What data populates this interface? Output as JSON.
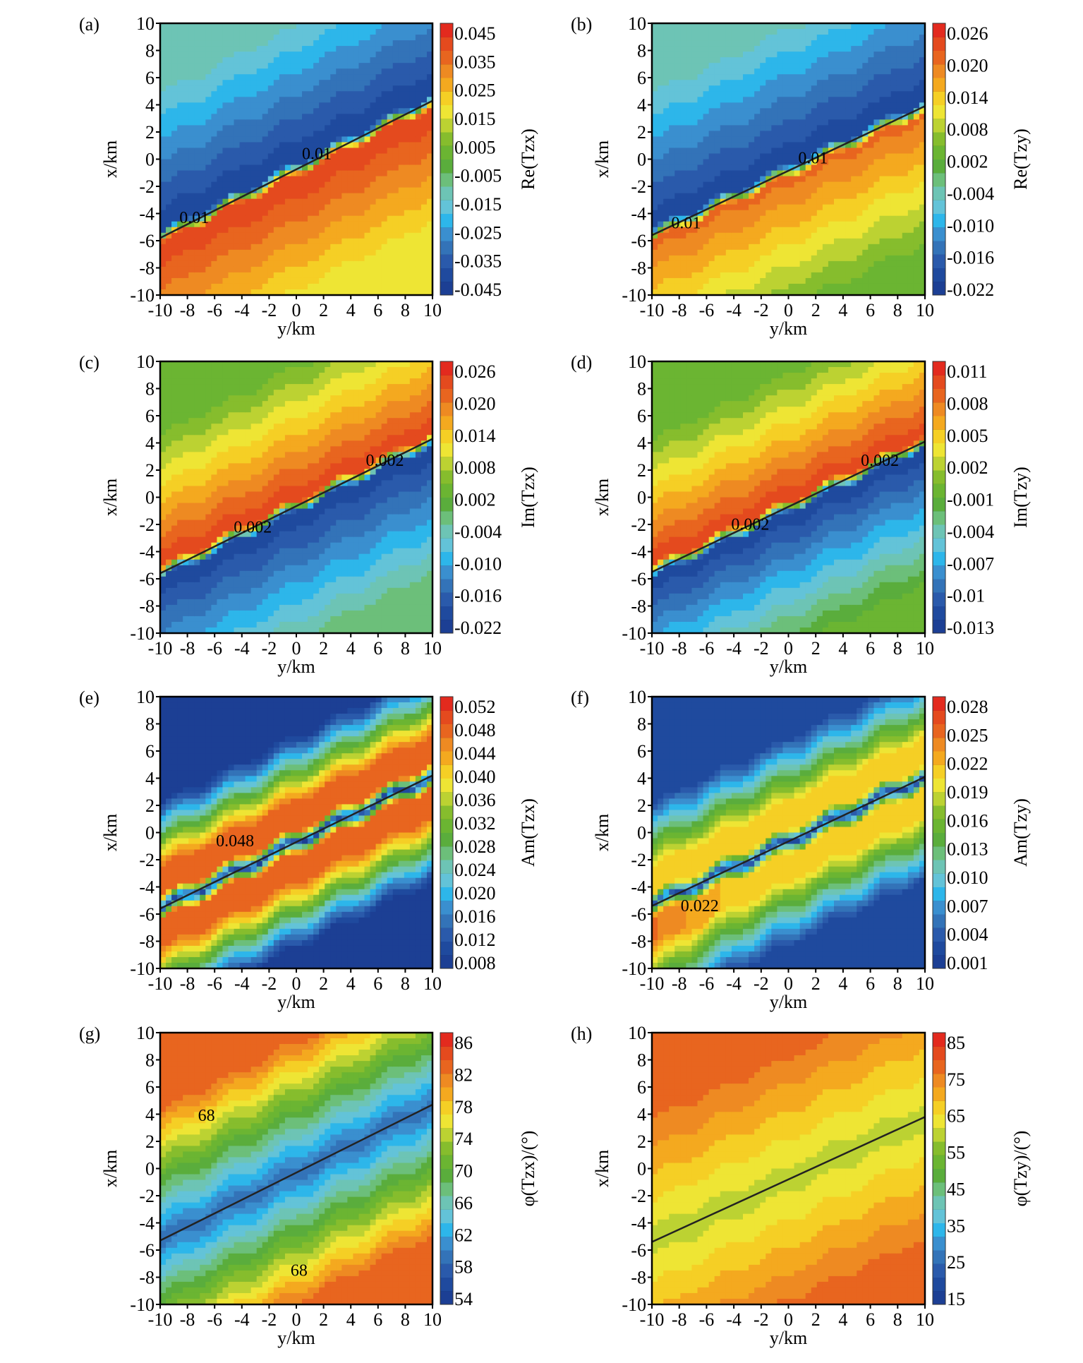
{
  "chart_data": [
    {
      "panel": "(a)",
      "type": "heatmap",
      "xlabel": "y/km",
      "ylabel": "x/km",
      "xlim": [
        -10,
        10
      ],
      "ylim": [
        -10,
        10
      ],
      "xticks": [
        "-10",
        "-8",
        "-6",
        "-4",
        "-2",
        "0",
        "2",
        "4",
        "6",
        "8",
        "10"
      ],
      "yticks": [
        "10",
        "8",
        "6",
        "4",
        "2",
        "0",
        "-2",
        "-4",
        "-6",
        "-8",
        "-10"
      ],
      "colorbar_label": "Re(Tzx)",
      "colorbar_ticks": [
        "0.045",
        "0.035",
        "0.025",
        "0.015",
        "0.005",
        "-0.005",
        "-0.015",
        "-0.025",
        "-0.035",
        "-0.045"
      ],
      "colorbar_range": [
        -0.05,
        0.05
      ],
      "contour_line": {
        "start": [
          -10,
          -5.8
        ],
        "end": [
          10,
          4.3
        ]
      },
      "contour_labels": [
        {
          "text": "0.01",
          "at": [
            1.5,
            0
          ]
        },
        {
          "text": "0.01",
          "at": [
            -7.5,
            -4.7
          ]
        }
      ],
      "field": {
        "above_line": -0.045,
        "below_line": 0.045,
        "far_above": -0.015,
        "far_below": 0.015
      }
    },
    {
      "panel": "(b)",
      "type": "heatmap",
      "xlabel": "y/km",
      "ylabel": "x/km",
      "xlim": [
        -10,
        10
      ],
      "ylim": [
        -10,
        10
      ],
      "xticks": [
        "-10",
        "-8",
        "-6",
        "-4",
        "-2",
        "0",
        "2",
        "4",
        "6",
        "8",
        "10"
      ],
      "yticks": [
        "10",
        "8",
        "6",
        "4",
        "2",
        "0",
        "-2",
        "-4",
        "-6",
        "-8",
        "-10"
      ],
      "colorbar_label": "Re(Tzy)",
      "colorbar_ticks": [
        "0.026",
        "0.020",
        "0.014",
        "0.008",
        "0.002",
        "-0.004",
        "-0.010",
        "-0.016",
        "-0.022"
      ],
      "colorbar_range": [
        -0.025,
        0.029
      ],
      "contour_line": {
        "start": [
          -10,
          -5.6
        ],
        "end": [
          10,
          3.9
        ]
      },
      "contour_labels": [
        {
          "text": "0.01",
          "at": [
            1.8,
            -0.3
          ]
        },
        {
          "text": "0.01",
          "at": [
            -7.5,
            -5.1
          ]
        }
      ],
      "field": {
        "above_line": -0.022,
        "below_line": 0.022,
        "far_above": -0.006,
        "far_below": 0.004
      }
    },
    {
      "panel": "(c)",
      "type": "heatmap",
      "xlabel": "y/km",
      "ylabel": "x/km",
      "xlim": [
        -10,
        10
      ],
      "ylim": [
        -10,
        10
      ],
      "xticks": [
        "-10",
        "-8",
        "-6",
        "-4",
        "-2",
        "0",
        "2",
        "4",
        "6",
        "8",
        "10"
      ],
      "yticks": [
        "10",
        "8",
        "6",
        "4",
        "2",
        "0",
        "-2",
        "-4",
        "-6",
        "-8",
        "-10"
      ],
      "colorbar_label": "Im(Tzx)",
      "colorbar_ticks": [
        "0.026",
        "0.020",
        "0.014",
        "0.008",
        "0.002",
        "-0.004",
        "-0.010",
        "-0.016",
        "-0.022"
      ],
      "colorbar_range": [
        -0.025,
        0.029
      ],
      "contour_line": {
        "start": [
          -10,
          -5.6
        ],
        "end": [
          10,
          4.3
        ]
      },
      "contour_labels": [
        {
          "text": "0.002",
          "at": [
            6.5,
            2.3
          ]
        },
        {
          "text": "0.002",
          "at": [
            -3.2,
            -2.6
          ]
        }
      ],
      "field": {
        "above_line": 0.026,
        "below_line": -0.022,
        "far_above": 0.004,
        "far_below": -0.002
      }
    },
    {
      "panel": "(d)",
      "type": "heatmap",
      "xlabel": "y/km",
      "ylabel": "x/km",
      "xlim": [
        -10,
        10
      ],
      "ylim": [
        -10,
        10
      ],
      "xticks": [
        "-10",
        "-8",
        "-6",
        "-4",
        "-2",
        "0",
        "2",
        "4",
        "6",
        "8",
        "10"
      ],
      "yticks": [
        "10",
        "8",
        "6",
        "4",
        "2",
        "0",
        "-2",
        "-4",
        "-6",
        "-8",
        "-10"
      ],
      "colorbar_label": "Im(Tzy)",
      "colorbar_ticks": [
        "0.011",
        "0.008",
        "0.005",
        "0.002",
        "-0.001",
        "-0.004",
        "-0.007",
        "-0.01",
        "-0.013"
      ],
      "colorbar_range": [
        -0.0145,
        0.0125
      ],
      "contour_line": {
        "start": [
          -10,
          -5.5
        ],
        "end": [
          10,
          4.1
        ]
      },
      "contour_labels": [
        {
          "text": "0.002",
          "at": [
            6.7,
            2.3
          ]
        },
        {
          "text": "0.002",
          "at": [
            -2.8,
            -2.4
          ]
        }
      ],
      "field": {
        "above_line": 0.011,
        "below_line": -0.013,
        "far_above": -0.0005,
        "far_below": -0.001
      }
    },
    {
      "panel": "(e)",
      "type": "heatmap",
      "xlabel": "y/km",
      "ylabel": "x/km",
      "xlim": [
        -10,
        10
      ],
      "ylim": [
        -10,
        10
      ],
      "xticks": [
        "-10",
        "-8",
        "-6",
        "-4",
        "-2",
        "0",
        "2",
        "4",
        "6",
        "8",
        "10"
      ],
      "yticks": [
        "10",
        "8",
        "6",
        "4",
        "2",
        "0",
        "-2",
        "-4",
        "-6",
        "-8",
        "-10"
      ],
      "colorbar_label": "Am(Tzx)",
      "colorbar_ticks": [
        "0.052",
        "0.048",
        "0.044",
        "0.040",
        "0.036",
        "0.032",
        "0.028",
        "0.024",
        "0.020",
        "0.016",
        "0.012",
        "0.008"
      ],
      "colorbar_range": [
        0.006,
        0.054
      ],
      "contour_line": {
        "start": [
          -10,
          -5.6
        ],
        "end": [
          10,
          4.2
        ]
      },
      "contour_labels": [
        {
          "text": "0.048",
          "at": [
            -4.5,
            -1.0
          ]
        }
      ],
      "field": {
        "on_line": 0.008,
        "peak": 0.049,
        "far": 0.008
      }
    },
    {
      "panel": "(f)",
      "type": "heatmap",
      "xlabel": "y/km",
      "ylabel": "x/km",
      "xlim": [
        -10,
        10
      ],
      "ylim": [
        -10,
        10
      ],
      "xticks": [
        "-10",
        "-8",
        "-6",
        "-4",
        "-2",
        "0",
        "2",
        "4",
        "6",
        "8",
        "10"
      ],
      "yticks": [
        "10",
        "8",
        "6",
        "4",
        "2",
        "0",
        "-2",
        "-4",
        "-6",
        "-8",
        "-10"
      ],
      "colorbar_label": "Am(Tzy)",
      "colorbar_ticks": [
        "0.028",
        "0.025",
        "0.022",
        "0.019",
        "0.016",
        "0.013",
        "0.010",
        "0.007",
        "0.004",
        "0.001"
      ],
      "colorbar_range": [
        0.0,
        0.029
      ],
      "contour_line": {
        "start": [
          -10,
          -5.4
        ],
        "end": [
          10,
          4.1
        ]
      },
      "contour_labels": [
        {
          "text": "0.022",
          "at": [
            -6.5,
            -5.8
          ]
        }
      ],
      "field": {
        "on_line": 0.002,
        "peak": 0.021,
        "far": 0.002
      }
    },
    {
      "panel": "(g)",
      "type": "heatmap",
      "xlabel": "y/km",
      "ylabel": "x/km",
      "xlim": [
        -10,
        10
      ],
      "ylim": [
        -10,
        10
      ],
      "xticks": [
        "-10",
        "-8",
        "-6",
        "-4",
        "-2",
        "0",
        "2",
        "4",
        "6",
        "8",
        "10"
      ],
      "yticks": [
        "10",
        "8",
        "6",
        "4",
        "2",
        "0",
        "-2",
        "-4",
        "-6",
        "-8",
        "-10"
      ],
      "colorbar_label": "φ(Tzx)/(°)",
      "colorbar_ticks": [
        "86",
        "82",
        "78",
        "74",
        "70",
        "66",
        "62",
        "58",
        "54"
      ],
      "colorbar_range": [
        52,
        88
      ],
      "contour_line": {
        "start": [
          -10,
          -5.3
        ],
        "end": [
          10,
          4.7
        ]
      },
      "contour_labels": [
        {
          "text": "68",
          "at": [
            -6.6,
            3.5
          ]
        },
        {
          "text": "68",
          "at": [
            0.2,
            -7.9
          ]
        }
      ],
      "field": {
        "on_line": 58,
        "far": 84
      }
    },
    {
      "panel": "(h)",
      "type": "heatmap",
      "xlabel": "y/km",
      "ylabel": "x/km",
      "xlim": [
        -10,
        10
      ],
      "ylim": [
        -10,
        10
      ],
      "xticks": [
        "-10",
        "-8",
        "-6",
        "-4",
        "-2",
        "0",
        "2",
        "4",
        "6",
        "8",
        "10"
      ],
      "yticks": [
        "10",
        "8",
        "6",
        "4",
        "2",
        "0",
        "-2",
        "-4",
        "-6",
        "-8",
        "-10"
      ],
      "colorbar_label": "φ(Tzy)/(°)",
      "colorbar_ticks": [
        "85",
        "75",
        "65",
        "55",
        "45",
        "35",
        "25",
        "15"
      ],
      "colorbar_range": [
        10,
        90
      ],
      "contour_line": {
        "start": [
          -10,
          -5.4
        ],
        "end": [
          10,
          3.8
        ]
      },
      "contour_labels": [],
      "field": {
        "on_line": 60,
        "far": 80
      }
    }
  ]
}
